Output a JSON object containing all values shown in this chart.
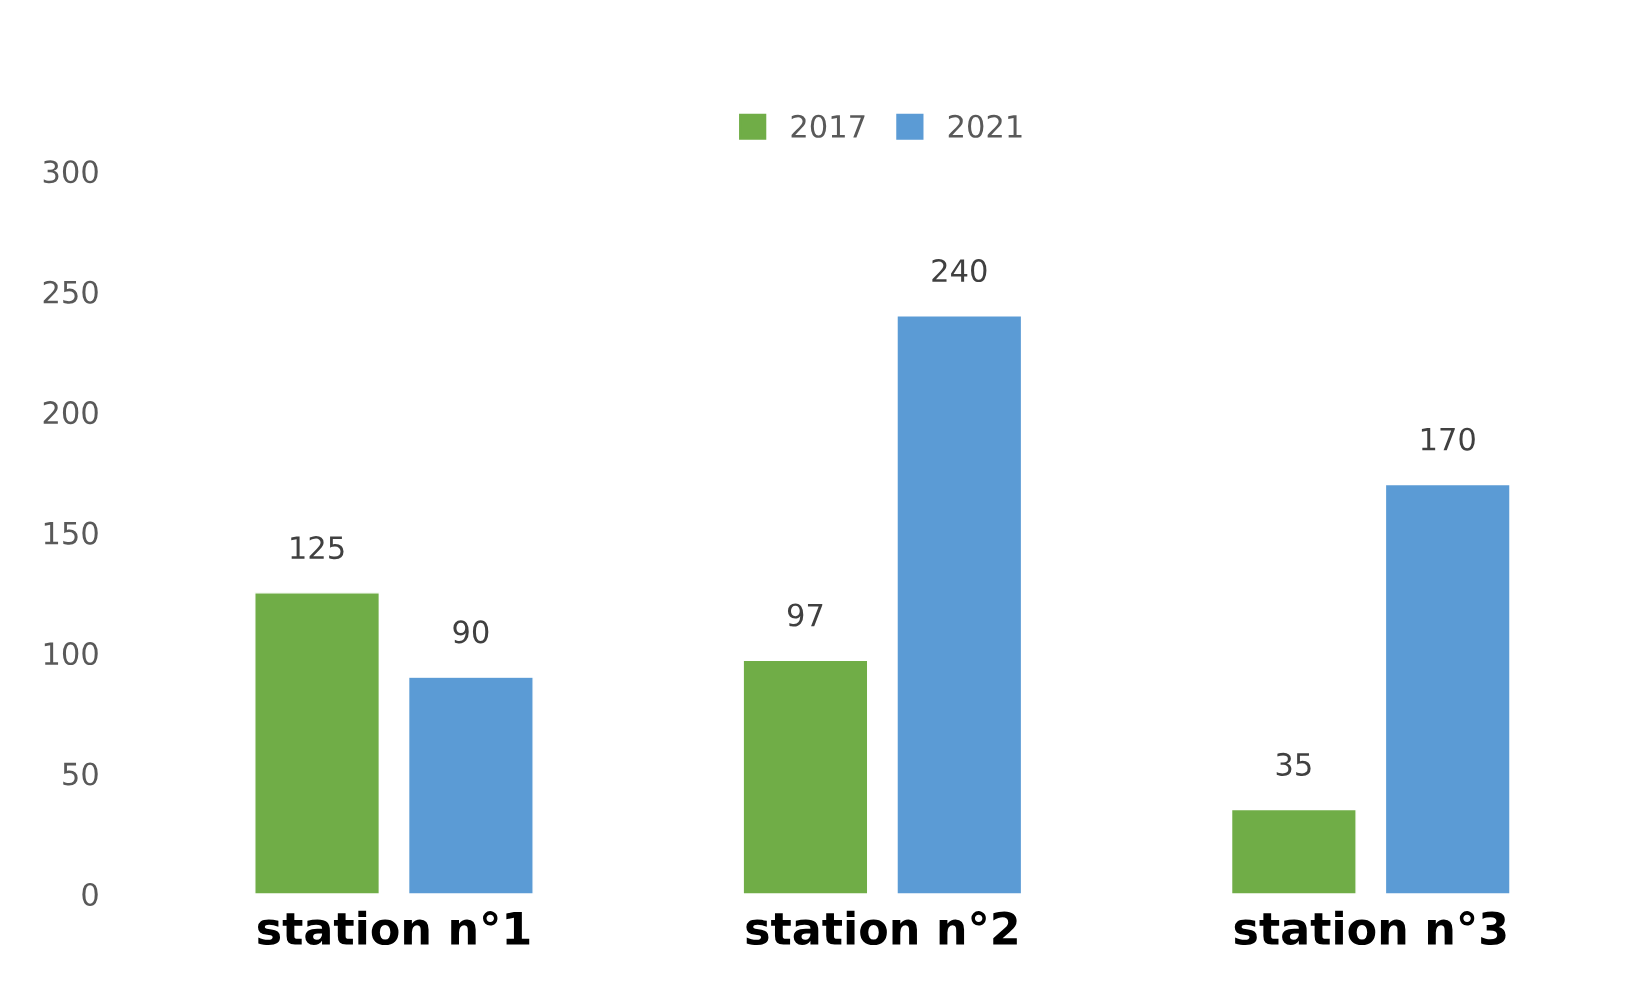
{
  "chart_data": {
    "type": "bar",
    "categories": [
      "station n°1",
      "station n°2",
      "station n°3"
    ],
    "series": [
      {
        "name": "2017",
        "color": "#70ad47",
        "values": [
          125,
          97,
          35
        ]
      },
      {
        "name": "2021",
        "color": "#5b9bd5",
        "values": [
          90,
          240,
          170
        ]
      }
    ],
    "ylim": [
      0,
      300
    ],
    "yticks": [
      0,
      50,
      100,
      150,
      200,
      250,
      300
    ],
    "data_labels": true,
    "legend": "top"
  }
}
